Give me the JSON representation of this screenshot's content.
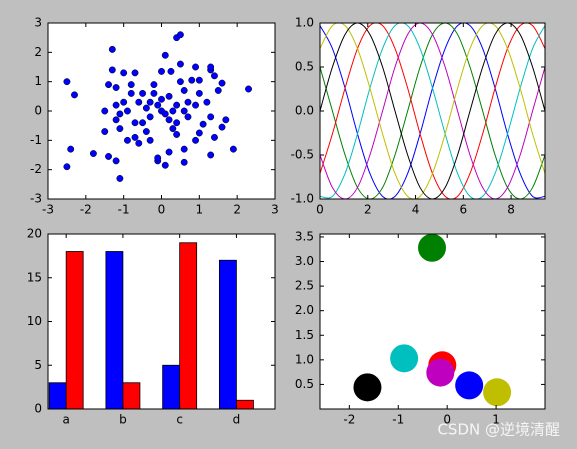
{
  "chart_data": [
    {
      "type": "scatter",
      "color": "#0000ff",
      "x": [
        -2.5,
        -2.3,
        -2.4,
        -2.5,
        -1.8,
        -1.3,
        -1.3,
        -1.4,
        -1.2,
        -1.1,
        -1.2,
        -1.4,
        -1.5,
        -1.1,
        -0.9,
        -0.8,
        -0.7,
        -1.0,
        0.4,
        0.5,
        0.1,
        0.5,
        0.0,
        0.25,
        0.8,
        1.0,
        1.3,
        1.3,
        1.4,
        1.6,
        1.5,
        2.3,
        1.7,
        1.6,
        1.9,
        1.3,
        1.4,
        1.1,
        1.0,
        0.9,
        0.6,
        0.6,
        0.3,
        0.4,
        0.2,
        -0.1,
        -0.1,
        0.2,
        0.1,
        -0.3,
        -0.5,
        -0.4,
        -0.6,
        -0.7,
        -0.3,
        -0.2,
        -0.5,
        -0.4,
        -0.6,
        0.0,
        0.2,
        0.4,
        0.7,
        0.6,
        0.3,
        0.0,
        -0.1,
        -0.9,
        -1.1,
        -1.2,
        -1.0,
        -0.8,
        -1.2,
        0.9,
        1.0,
        1.2,
        0.4,
        0.7,
        0.1,
        -0.3,
        0.9,
        1.3,
        -0.2,
        0.5,
        0.6,
        -1.5,
        -0.7
      ],
      "y": [
        1.0,
        0.55,
        -1.3,
        -1.9,
        -1.45,
        2.1,
        1.4,
        0.9,
        0.8,
        -2.3,
        -1.7,
        -1.55,
        -0.7,
        -0.6,
        -1.0,
        0.9,
        1.3,
        1.3,
        2.5,
        2.6,
        1.9,
        1.6,
        1.35,
        1.35,
        1.05,
        1.05,
        1.4,
        1.5,
        1.2,
        0.95,
        0.7,
        0.75,
        -0.3,
        -0.55,
        -1.3,
        -1.5,
        -0.9,
        -0.45,
        -0.75,
        -1.0,
        -1.3,
        -1.75,
        -0.6,
        -0.8,
        -0.3,
        -1.7,
        -1.6,
        -1.4,
        -1.85,
        -0.2,
        -0.4,
        -0.7,
        -1.1,
        -0.9,
        0.3,
        0.6,
        0.6,
        0.1,
        0.3,
        0.4,
        0.5,
        0.2,
        0.3,
        0.0,
        0.0,
        0.0,
        0.2,
        0.0,
        -0.1,
        0.2,
        0.3,
        0.6,
        -0.3,
        0.2,
        0.6,
        0.3,
        -0.4,
        -0.2,
        -0.1,
        -1.0,
        1.5,
        -0.2,
        0.9,
        1.0,
        0.7,
        0.0,
        -0.4
      ],
      "xlim": [
        -3,
        3
      ],
      "xticks": [
        -3,
        -2,
        -1,
        0,
        1,
        2,
        3
      ],
      "ylim": [
        -3,
        3
      ],
      "yticks": [
        -3,
        -2,
        -1,
        0,
        1,
        2,
        3
      ]
    },
    {
      "type": "line",
      "x": [
        0,
        0.52,
        1.05,
        1.57,
        2.09,
        2.62,
        3.14,
        3.67,
        4.19,
        4.71,
        5.24,
        5.76,
        6.28,
        6.81,
        7.33,
        7.85,
        8.38,
        8.9,
        9.42
      ],
      "series": [
        {
          "color": "#0000ff",
          "values": [
            0.97,
            0.71,
            0.26,
            -0.26,
            -0.71,
            -0.97,
            -0.97,
            -0.71,
            -0.26,
            0.26,
            0.71,
            0.97,
            0.97,
            0.71,
            0.26,
            -0.26,
            -0.71,
            -0.97,
            -0.97
          ]
        },
        {
          "color": "#008000",
          "values": [
            0.5,
            0,
            -0.5,
            -0.87,
            -1,
            -0.87,
            -0.5,
            0,
            0.5,
            0.87,
            1,
            0.87,
            0.5,
            0,
            -0.5,
            -0.87,
            -1,
            -0.87,
            -0.5
          ]
        },
        {
          "color": "#ff0000",
          "values": [
            -0.71,
            -0.26,
            0.26,
            0.71,
            0.97,
            0.97,
            0.71,
            0.26,
            -0.26,
            -0.71,
            -0.97,
            -0.97,
            -0.71,
            -0.26,
            0.26,
            0.71,
            0.97,
            0.97,
            0.71
          ]
        },
        {
          "color": "#00bfbf",
          "values": [
            -0.97,
            -0.97,
            -0.71,
            -0.26,
            0.26,
            0.71,
            0.97,
            0.97,
            0.71,
            0.26,
            -0.26,
            -0.71,
            -0.97,
            -0.97,
            -0.71,
            -0.26,
            0.26,
            0.71,
            0.97
          ]
        },
        {
          "color": "#bf00bf",
          "values": [
            -0.5,
            -0.87,
            -1,
            -0.87,
            -0.5,
            0,
            0.5,
            0.87,
            1,
            0.87,
            0.5,
            0,
            -0.5,
            -0.87,
            -1,
            -0.87,
            -0.5,
            0,
            0.5
          ]
        },
        {
          "color": "#bfbf00",
          "values": [
            0.71,
            0.97,
            0.97,
            0.71,
            0.26,
            -0.26,
            -0.71,
            -0.97,
            -0.97,
            -0.71,
            -0.26,
            0.26,
            0.71,
            0.97,
            0.97,
            0.71,
            0.26,
            -0.26,
            -0.71
          ]
        },
        {
          "color": "#000000",
          "values": [
            0,
            0.5,
            0.87,
            1,
            0.87,
            0.5,
            0,
            -0.5,
            -0.87,
            -1,
            -0.87,
            -0.5,
            0,
            0.5,
            0.87,
            1,
            0.87,
            0.5,
            0
          ]
        }
      ],
      "xlim": [
        0,
        9.42
      ],
      "xticks": [
        0,
        2,
        4,
        6,
        8
      ],
      "ylim": [
        -1,
        1
      ],
      "yticks": [
        {
          "value": -1,
          "label": "-1.0"
        },
        -0.5,
        {
          "value": 0,
          "label": "0.0"
        },
        0.5,
        {
          "value": 1,
          "label": "1.0"
        }
      ]
    },
    {
      "type": "bar",
      "categories": [
        "a",
        "b",
        "c",
        "d"
      ],
      "series": [
        {
          "color": "#0000ff",
          "values": [
            3,
            18,
            5,
            17
          ]
        },
        {
          "color": "#ff0000",
          "values": [
            18,
            3,
            19,
            1
          ]
        }
      ],
      "ylim": [
        0,
        20
      ],
      "yticks": [
        0,
        5,
        10,
        15,
        20
      ]
    },
    {
      "type": "scatter",
      "x": [
        -1.63,
        -0.88,
        -0.31,
        -0.1,
        -0.14,
        0.45,
        1.02
      ],
      "y": [
        0.44,
        1.03,
        3.28,
        0.89,
        0.74,
        0.48,
        0.34
      ],
      "colors": [
        "#000000",
        "#00bfbf",
        "#008000",
        "#ff0000",
        "#bf00bf",
        "#0000ff",
        "#bfbf00"
      ],
      "xlim": [
        -2.6,
        2.0
      ],
      "xticks": [
        -2,
        -1,
        0,
        1
      ],
      "ylim": [
        0,
        3.56
      ],
      "yticks": [
        0.5,
        {
          "value": 1,
          "label": "1.0"
        },
        1.5,
        {
          "value": 2,
          "label": "2.0"
        },
        2.5,
        {
          "value": 3,
          "label": "3.0"
        },
        3.5
      ]
    }
  ],
  "watermark": "CSDN @逆境清醒"
}
